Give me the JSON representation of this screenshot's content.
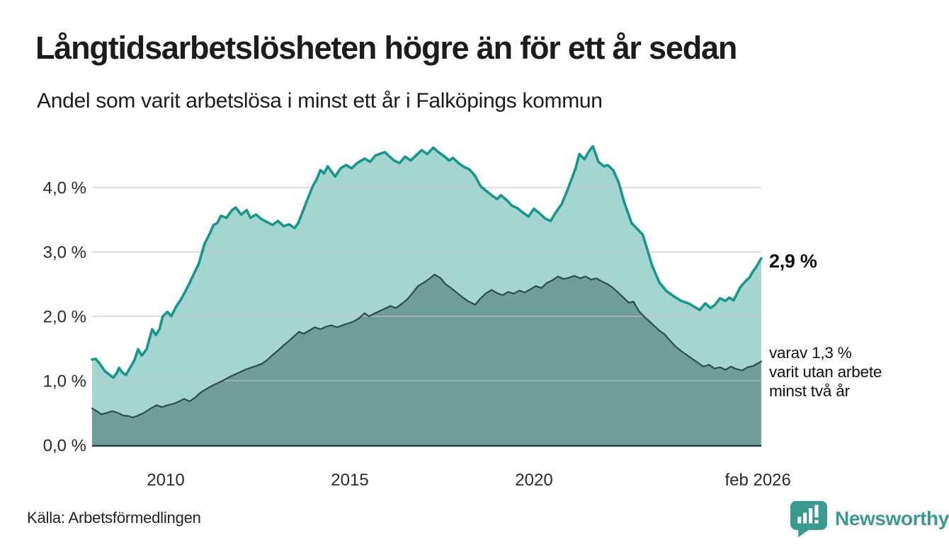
{
  "header": {
    "title": "Långtidsarbetslösheten högre än för ett år sedan",
    "subtitle": "Andel som varit arbetslösa i minst ett år i Falköpings kommun"
  },
  "annotations": {
    "primary": {
      "label": "2,9 %"
    },
    "secondary": {
      "lines": [
        "varav 1,3 %",
        "varit utan arbete",
        "minst två år"
      ]
    }
  },
  "footer": {
    "source": "Källa: Arbetsförmedlingen",
    "brand": "Newsworthy"
  },
  "colors": {
    "teal_line": "#17978a",
    "light_fill": "#a4d5ce",
    "dark_line": "#2d4d46",
    "dark_fill": "#6f9d98",
    "grid": "#c4c4c4",
    "axis": "#22403a",
    "brand_teal": "#3a9a8e",
    "text": "#1c1c1c"
  },
  "chart_data": {
    "type": "area",
    "title": "Långtidsarbetslösheten högre än för ett år sedan",
    "subtitle": "Andel som varit arbetslösa i minst ett år i Falköpings kommun",
    "ylabel": "",
    "xlabel": "",
    "grid": true,
    "x_domain": [
      2008.0,
      2026.17
    ],
    "y_domain": [
      0,
      4.8
    ],
    "y_ticks": [
      {
        "label": "4,0 %",
        "value": 4
      },
      {
        "label": "3,0 %",
        "value": 3
      },
      {
        "label": "2,0 %",
        "value": 2
      },
      {
        "label": "1,0 %",
        "value": 1
      },
      {
        "label": "0,0 %",
        "value": 0
      }
    ],
    "x_ticks": [
      {
        "label": "2010",
        "year": 2010
      },
      {
        "label": "2015",
        "year": 2015
      },
      {
        "label": "2020",
        "year": 2020
      },
      {
        "label": "feb 2026",
        "year": 2026.08
      }
    ],
    "series": [
      {
        "id": "unemployed-at-least-one-year",
        "end_label": "2,9 %",
        "end_value": 2.9,
        "points": [
          [
            2008.0,
            1.33
          ],
          [
            2008.1,
            1.34
          ],
          [
            2008.2,
            1.27
          ],
          [
            2008.35,
            1.15
          ],
          [
            2008.5,
            1.08
          ],
          [
            2008.58,
            1.05
          ],
          [
            2008.68,
            1.13
          ],
          [
            2008.73,
            1.2
          ],
          [
            2008.82,
            1.13
          ],
          [
            2008.92,
            1.09
          ],
          [
            2009.05,
            1.22
          ],
          [
            2009.15,
            1.32
          ],
          [
            2009.25,
            1.49
          ],
          [
            2009.35,
            1.39
          ],
          [
            2009.48,
            1.49
          ],
          [
            2009.63,
            1.8
          ],
          [
            2009.73,
            1.71
          ],
          [
            2009.83,
            1.8
          ],
          [
            2009.92,
            2.0
          ],
          [
            2010.05,
            2.07
          ],
          [
            2010.15,
            2.0
          ],
          [
            2010.28,
            2.15
          ],
          [
            2010.4,
            2.25
          ],
          [
            2010.5,
            2.35
          ],
          [
            2010.65,
            2.52
          ],
          [
            2010.78,
            2.68
          ],
          [
            2010.9,
            2.82
          ],
          [
            2011.05,
            3.12
          ],
          [
            2011.2,
            3.29
          ],
          [
            2011.3,
            3.42
          ],
          [
            2011.4,
            3.45
          ],
          [
            2011.5,
            3.56
          ],
          [
            2011.65,
            3.53
          ],
          [
            2011.8,
            3.65
          ],
          [
            2011.9,
            3.69
          ],
          [
            2012.05,
            3.58
          ],
          [
            2012.2,
            3.65
          ],
          [
            2012.3,
            3.53
          ],
          [
            2012.45,
            3.58
          ],
          [
            2012.6,
            3.51
          ],
          [
            2012.8,
            3.45
          ],
          [
            2012.9,
            3.42
          ],
          [
            2013.05,
            3.48
          ],
          [
            2013.2,
            3.4
          ],
          [
            2013.35,
            3.43
          ],
          [
            2013.5,
            3.37
          ],
          [
            2013.6,
            3.45
          ],
          [
            2013.75,
            3.67
          ],
          [
            2013.9,
            3.89
          ],
          [
            2014.0,
            4.03
          ],
          [
            2014.1,
            4.13
          ],
          [
            2014.2,
            4.27
          ],
          [
            2014.3,
            4.22
          ],
          [
            2014.4,
            4.33
          ],
          [
            2014.5,
            4.25
          ],
          [
            2014.6,
            4.17
          ],
          [
            2014.75,
            4.3
          ],
          [
            2014.9,
            4.35
          ],
          [
            2015.05,
            4.3
          ],
          [
            2015.2,
            4.38
          ],
          [
            2015.4,
            4.45
          ],
          [
            2015.55,
            4.4
          ],
          [
            2015.7,
            4.5
          ],
          [
            2015.95,
            4.55
          ],
          [
            2016.1,
            4.47
          ],
          [
            2016.2,
            4.42
          ],
          [
            2016.35,
            4.38
          ],
          [
            2016.5,
            4.48
          ],
          [
            2016.65,
            4.42
          ],
          [
            2016.8,
            4.5
          ],
          [
            2016.95,
            4.58
          ],
          [
            2017.1,
            4.52
          ],
          [
            2017.27,
            4.62
          ],
          [
            2017.4,
            4.55
          ],
          [
            2017.55,
            4.49
          ],
          [
            2017.7,
            4.42
          ],
          [
            2017.8,
            4.46
          ],
          [
            2017.95,
            4.38
          ],
          [
            2018.1,
            4.32
          ],
          [
            2018.25,
            4.28
          ],
          [
            2018.4,
            4.18
          ],
          [
            2018.55,
            4.02
          ],
          [
            2018.7,
            3.95
          ],
          [
            2018.85,
            3.88
          ],
          [
            2019.0,
            3.82
          ],
          [
            2019.1,
            3.88
          ],
          [
            2019.25,
            3.81
          ],
          [
            2019.4,
            3.72
          ],
          [
            2019.55,
            3.68
          ],
          [
            2019.7,
            3.61
          ],
          [
            2019.85,
            3.55
          ],
          [
            2020.0,
            3.67
          ],
          [
            2020.15,
            3.6
          ],
          [
            2020.3,
            3.52
          ],
          [
            2020.45,
            3.48
          ],
          [
            2020.6,
            3.62
          ],
          [
            2020.75,
            3.74
          ],
          [
            2020.9,
            3.95
          ],
          [
            2021.0,
            4.1
          ],
          [
            2021.13,
            4.3
          ],
          [
            2021.23,
            4.52
          ],
          [
            2021.37,
            4.44
          ],
          [
            2021.5,
            4.57
          ],
          [
            2021.6,
            4.64
          ],
          [
            2021.75,
            4.4
          ],
          [
            2021.9,
            4.33
          ],
          [
            2022.0,
            4.35
          ],
          [
            2022.15,
            4.27
          ],
          [
            2022.3,
            4.08
          ],
          [
            2022.45,
            3.77
          ],
          [
            2022.65,
            3.45
          ],
          [
            2022.85,
            3.33
          ],
          [
            2022.95,
            3.27
          ],
          [
            2023.05,
            3.09
          ],
          [
            2023.2,
            2.8
          ],
          [
            2023.4,
            2.53
          ],
          [
            2023.6,
            2.39
          ],
          [
            2023.8,
            2.31
          ],
          [
            2024.0,
            2.24
          ],
          [
            2024.2,
            2.2
          ],
          [
            2024.35,
            2.15
          ],
          [
            2024.5,
            2.1
          ],
          [
            2024.65,
            2.2
          ],
          [
            2024.8,
            2.13
          ],
          [
            2024.92,
            2.18
          ],
          [
            2025.05,
            2.28
          ],
          [
            2025.2,
            2.24
          ],
          [
            2025.3,
            2.29
          ],
          [
            2025.42,
            2.25
          ],
          [
            2025.6,
            2.45
          ],
          [
            2025.75,
            2.55
          ],
          [
            2025.85,
            2.6
          ],
          [
            2025.95,
            2.7
          ],
          [
            2026.05,
            2.78
          ],
          [
            2026.17,
            2.9
          ]
        ]
      },
      {
        "id": "unemployed-at-least-two-years",
        "end_label": "varav 1,3 % varit utan arbete minst två år",
        "end_value": 1.3,
        "points": [
          [
            2008.0,
            0.57
          ],
          [
            2008.15,
            0.52
          ],
          [
            2008.25,
            0.48
          ],
          [
            2008.4,
            0.5
          ],
          [
            2008.55,
            0.53
          ],
          [
            2008.7,
            0.5
          ],
          [
            2008.85,
            0.46
          ],
          [
            2009.0,
            0.45
          ],
          [
            2009.1,
            0.43
          ],
          [
            2009.25,
            0.46
          ],
          [
            2009.4,
            0.5
          ],
          [
            2009.6,
            0.57
          ],
          [
            2009.75,
            0.62
          ],
          [
            2009.9,
            0.59
          ],
          [
            2010.05,
            0.62
          ],
          [
            2010.25,
            0.65
          ],
          [
            2010.4,
            0.69
          ],
          [
            2010.5,
            0.72
          ],
          [
            2010.65,
            0.68
          ],
          [
            2010.8,
            0.74
          ],
          [
            2010.95,
            0.82
          ],
          [
            2011.1,
            0.87
          ],
          [
            2011.25,
            0.92
          ],
          [
            2011.4,
            0.96
          ],
          [
            2011.55,
            1.0
          ],
          [
            2011.7,
            1.05
          ],
          [
            2011.85,
            1.09
          ],
          [
            2012.0,
            1.13
          ],
          [
            2012.15,
            1.17
          ],
          [
            2012.3,
            1.2
          ],
          [
            2012.45,
            1.23
          ],
          [
            2012.6,
            1.26
          ],
          [
            2012.75,
            1.32
          ],
          [
            2012.9,
            1.4
          ],
          [
            2013.05,
            1.47
          ],
          [
            2013.2,
            1.55
          ],
          [
            2013.35,
            1.62
          ],
          [
            2013.5,
            1.7
          ],
          [
            2013.62,
            1.76
          ],
          [
            2013.75,
            1.73
          ],
          [
            2013.9,
            1.78
          ],
          [
            2014.05,
            1.83
          ],
          [
            2014.2,
            1.8
          ],
          [
            2014.35,
            1.84
          ],
          [
            2014.5,
            1.86
          ],
          [
            2014.65,
            1.83
          ],
          [
            2014.8,
            1.86
          ],
          [
            2014.95,
            1.89
          ],
          [
            2015.1,
            1.92
          ],
          [
            2015.25,
            1.97
          ],
          [
            2015.4,
            2.05
          ],
          [
            2015.52,
            2.0
          ],
          [
            2015.65,
            2.04
          ],
          [
            2015.8,
            2.08
          ],
          [
            2015.95,
            2.12
          ],
          [
            2016.1,
            2.16
          ],
          [
            2016.25,
            2.13
          ],
          [
            2016.4,
            2.19
          ],
          [
            2016.55,
            2.26
          ],
          [
            2016.7,
            2.36
          ],
          [
            2016.85,
            2.47
          ],
          [
            2017.0,
            2.52
          ],
          [
            2017.15,
            2.58
          ],
          [
            2017.3,
            2.65
          ],
          [
            2017.45,
            2.6
          ],
          [
            2017.6,
            2.5
          ],
          [
            2017.75,
            2.44
          ],
          [
            2017.9,
            2.37
          ],
          [
            2018.05,
            2.3
          ],
          [
            2018.2,
            2.24
          ],
          [
            2018.4,
            2.18
          ],
          [
            2018.55,
            2.28
          ],
          [
            2018.7,
            2.36
          ],
          [
            2018.85,
            2.41
          ],
          [
            2019.0,
            2.36
          ],
          [
            2019.15,
            2.33
          ],
          [
            2019.3,
            2.38
          ],
          [
            2019.45,
            2.35
          ],
          [
            2019.6,
            2.4
          ],
          [
            2019.75,
            2.37
          ],
          [
            2019.9,
            2.42
          ],
          [
            2020.05,
            2.47
          ],
          [
            2020.2,
            2.44
          ],
          [
            2020.35,
            2.52
          ],
          [
            2020.5,
            2.56
          ],
          [
            2020.65,
            2.62
          ],
          [
            2020.8,
            2.58
          ],
          [
            2020.95,
            2.6
          ],
          [
            2021.1,
            2.63
          ],
          [
            2021.25,
            2.59
          ],
          [
            2021.4,
            2.62
          ],
          [
            2021.55,
            2.57
          ],
          [
            2021.7,
            2.59
          ],
          [
            2021.85,
            2.54
          ],
          [
            2022.0,
            2.5
          ],
          [
            2022.15,
            2.44
          ],
          [
            2022.3,
            2.36
          ],
          [
            2022.45,
            2.28
          ],
          [
            2022.58,
            2.21
          ],
          [
            2022.7,
            2.23
          ],
          [
            2022.85,
            2.08
          ],
          [
            2023.0,
            1.99
          ],
          [
            2023.1,
            1.94
          ],
          [
            2023.25,
            1.86
          ],
          [
            2023.4,
            1.78
          ],
          [
            2023.55,
            1.72
          ],
          [
            2023.7,
            1.62
          ],
          [
            2023.85,
            1.53
          ],
          [
            2024.0,
            1.46
          ],
          [
            2024.15,
            1.4
          ],
          [
            2024.3,
            1.34
          ],
          [
            2024.45,
            1.28
          ],
          [
            2024.6,
            1.22
          ],
          [
            2024.75,
            1.25
          ],
          [
            2024.9,
            1.19
          ],
          [
            2025.05,
            1.21
          ],
          [
            2025.2,
            1.17
          ],
          [
            2025.35,
            1.22
          ],
          [
            2025.5,
            1.18
          ],
          [
            2025.65,
            1.16
          ],
          [
            2025.8,
            1.21
          ],
          [
            2025.95,
            1.23
          ],
          [
            2026.08,
            1.27
          ],
          [
            2026.17,
            1.3
          ]
        ]
      }
    ]
  }
}
